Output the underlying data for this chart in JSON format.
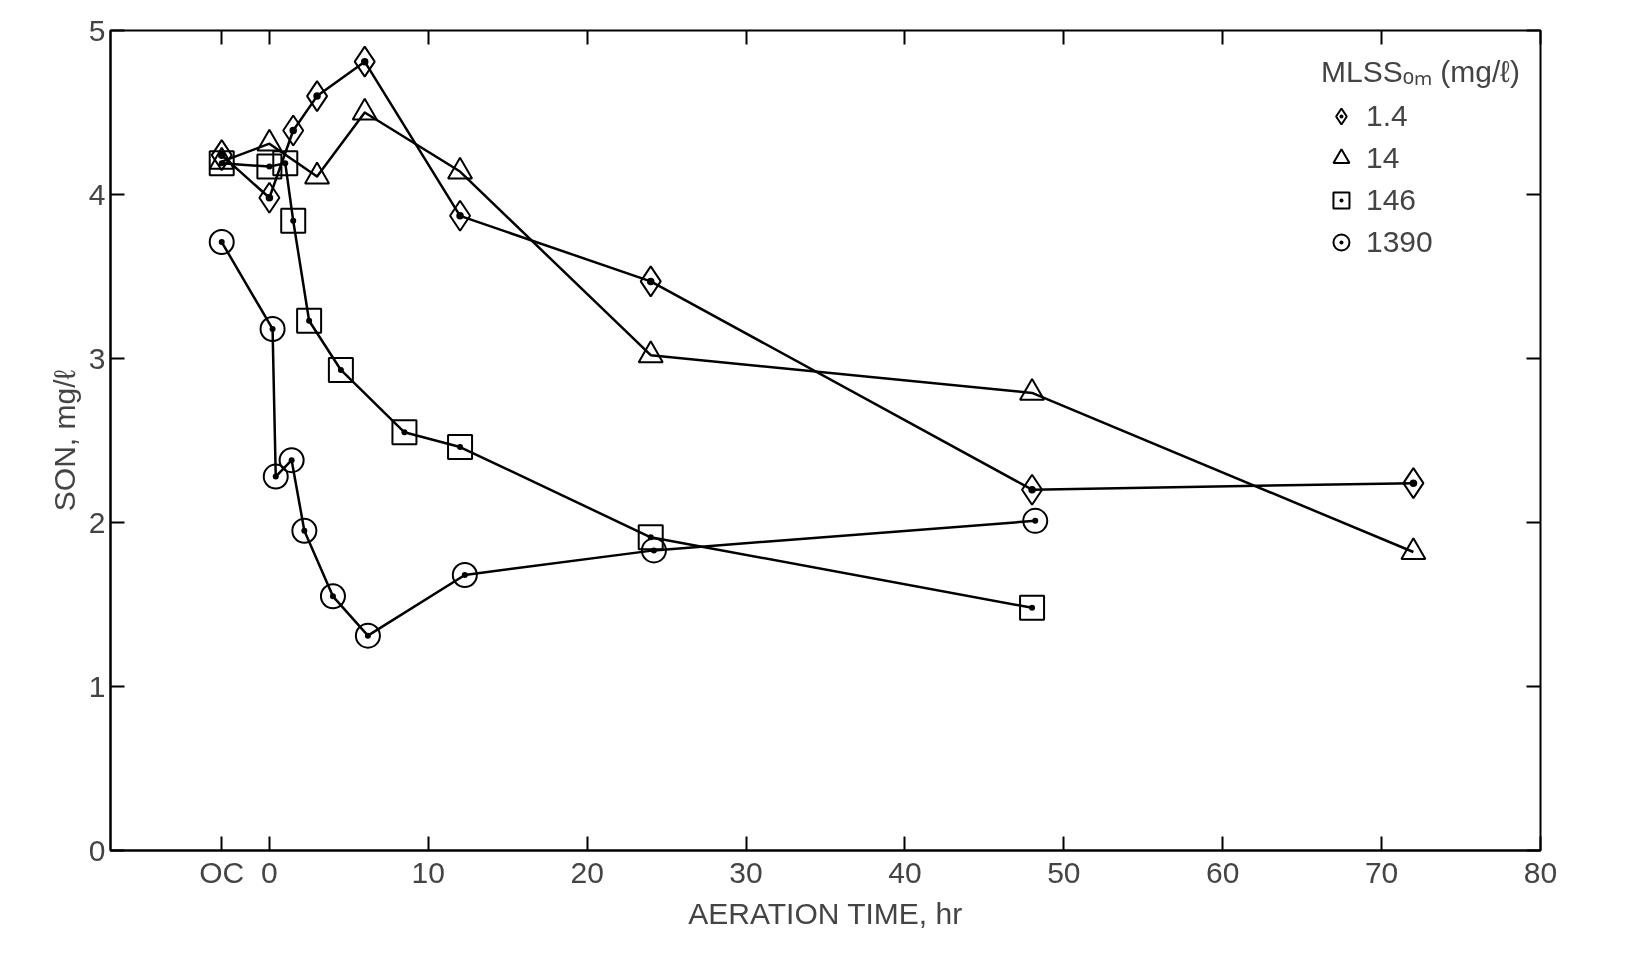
{
  "chart_data": {
    "type": "line",
    "xlabel": "AERATION TIME, hr",
    "ylabel": "SON, mg/ℓ",
    "legend_title": "MLSSₒₘ (mg/ℓ)",
    "legend": "top right",
    "grid": false,
    "xlim": [
      -10,
      80
    ],
    "xticks": [
      {
        "value": -3,
        "label": "OC"
      },
      0,
      10,
      20,
      30,
      40,
      50,
      60,
      70,
      80
    ],
    "ylim": [
      0,
      5
    ],
    "yticks": [
      0,
      1,
      2,
      3,
      4,
      5
    ],
    "series": [
      {
        "name": "1.4",
        "color": "#000000",
        "marker": "diamond",
        "x": [
          -3,
          0,
          1.5,
          3,
          6,
          12,
          24,
          48,
          72
        ],
        "values": [
          4.24,
          3.98,
          4.39,
          4.6,
          4.81,
          3.87,
          3.47,
          2.2,
          2.24
        ]
      },
      {
        "name": "14",
        "color": "#000000",
        "marker": "triangle",
        "x": [
          -3,
          0,
          3,
          6,
          12,
          24,
          48,
          72
        ],
        "values": [
          4.2,
          4.31,
          4.11,
          4.5,
          4.14,
          3.02,
          2.79,
          1.82
        ]
      },
      {
        "name": "146",
        "color": "#000000",
        "marker": "square",
        "x": [
          -3,
          0,
          1,
          1.5,
          2.5,
          4.5,
          8.5,
          12,
          24,
          48
        ],
        "values": [
          4.19,
          4.17,
          4.19,
          3.84,
          3.23,
          2.93,
          2.55,
          2.46,
          1.91,
          1.48
        ]
      },
      {
        "name": "1390",
        "color": "#000000",
        "marker": "circle",
        "x": [
          -3,
          0.2,
          0.4,
          1.4,
          2.2,
          4,
          6.2,
          12.3,
          24.2,
          48.2
        ],
        "values": [
          3.71,
          3.18,
          2.28,
          2.38,
          1.95,
          1.55,
          1.31,
          1.68,
          1.83,
          2.01
        ]
      }
    ]
  }
}
